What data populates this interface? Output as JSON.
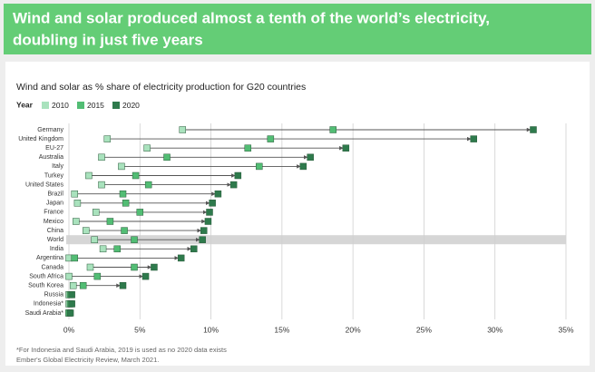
{
  "header": {
    "lines": [
      "Wind and solar produced almost a tenth of the world’s electricity,",
      "doubling in just five years"
    ]
  },
  "chart_data": {
    "type": "dumbbell",
    "title": "Wind and solar as % share of electricity production for G20 countries",
    "legend_title": "Year",
    "categories": [
      "Germany",
      "United Kingdom",
      "EU-27",
      "Australia",
      "Italy",
      "Turkey",
      "United States",
      "Brazil",
      "Japan",
      "France",
      "Mexico",
      "China",
      "World",
      "India",
      "Argentina",
      "Canada",
      "South Africa",
      "South Korea",
      "Russia",
      "Indonesia*",
      "Saudi Arabia*"
    ],
    "series": [
      {
        "name": "2010",
        "color": "#a9e2bd",
        "values": [
          8.0,
          2.7,
          5.5,
          2.3,
          3.7,
          1.4,
          2.3,
          0.4,
          0.6,
          1.9,
          0.5,
          1.2,
          1.8,
          2.4,
          0.0,
          1.5,
          0.0,
          0.3,
          0.0,
          0.0,
          0.0
        ]
      },
      {
        "name": "2015",
        "color": "#52bd74",
        "values": [
          18.6,
          14.2,
          12.6,
          6.9,
          13.4,
          4.7,
          5.6,
          3.8,
          4.0,
          5.0,
          2.9,
          3.9,
          4.6,
          3.4,
          0.4,
          4.6,
          2.0,
          1.0,
          0.1,
          0.1,
          0.0
        ]
      },
      {
        "name": "2020",
        "color": "#2e7a4c",
        "values": [
          32.7,
          28.5,
          19.5,
          17.0,
          16.5,
          11.9,
          11.6,
          10.5,
          10.1,
          9.9,
          9.8,
          9.5,
          9.4,
          8.8,
          7.9,
          6.0,
          5.4,
          3.8,
          0.2,
          0.2,
          0.1
        ]
      }
    ],
    "xlim": [
      0,
      35
    ],
    "xticks": [
      {
        "value": 0,
        "label": "0%"
      },
      {
        "value": 5,
        "label": "5%"
      },
      {
        "value": 10,
        "label": "10%"
      },
      {
        "value": 15,
        "label": "15%"
      },
      {
        "value": 20,
        "label": "20%"
      },
      {
        "value": 25,
        "label": "25%"
      },
      {
        "value": 30,
        "label": "30%"
      },
      {
        "value": 35,
        "label": "35%"
      }
    ],
    "grid": true,
    "highlight": "World",
    "notes": [
      "*For Indonesia and Saudi Arabia, 2019 is used as no 2020 data exists",
      "Ember's Global Electricity Review, March 2021."
    ]
  }
}
